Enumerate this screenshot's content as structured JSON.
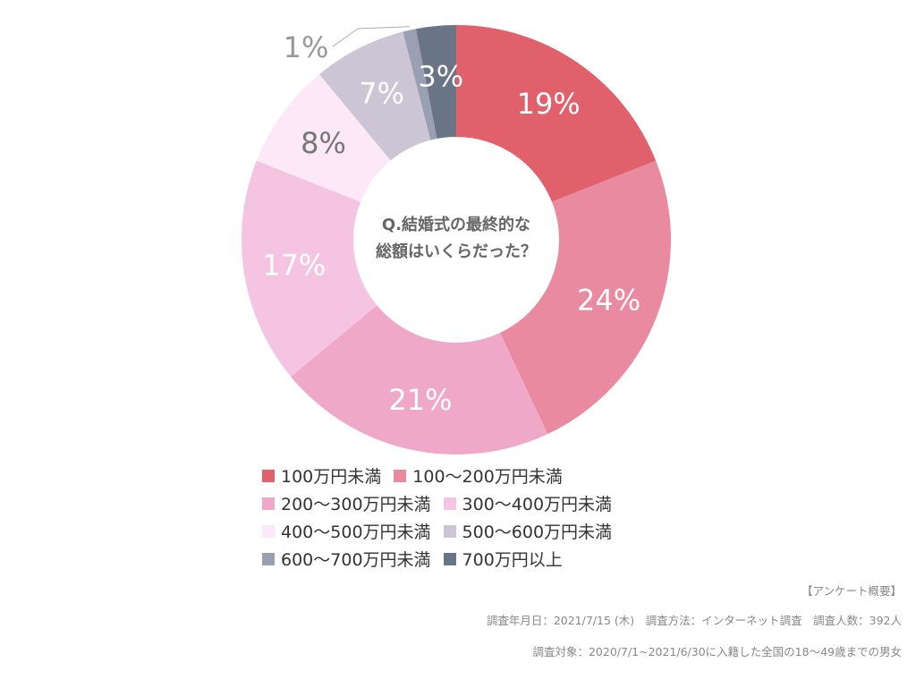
{
  "chart_data": {
    "type": "pie",
    "title": "Q.結婚式の最終的な総額はいくらだった？",
    "title_lines": [
      "Q.結婚式の最終的な",
      "総額はいくらだった？"
    ],
    "categories": [
      "100万円未満",
      "100〜200万円未満",
      "200〜300万円未満",
      "300〜400万円未満",
      "400〜500万円未満",
      "500〜600万円未満",
      "600〜700万円未満",
      "700万円以上"
    ],
    "values": [
      19,
      24,
      21,
      17,
      8,
      7,
      1,
      3
    ],
    "labels": [
      "19%",
      "24%",
      "21%",
      "17%",
      "8%",
      "7%",
      "1%",
      "3%"
    ],
    "colors": [
      "#e0606b",
      "#ea8aa0",
      "#f0a8c8",
      "#f5c4e3",
      "#fce8f6",
      "#cbc5d6",
      "#9a9fb1",
      "#697487"
    ],
    "legend": "bottom",
    "donut": true
  },
  "survey": {
    "title": "【アンケート概要】",
    "line1": "調査年月日：2021/7/15 (木)　調査方法：インターネット調査　調査人数：392人",
    "line2": "調査対象：2020/7/1~2021/6/30に入籍した全国の18〜49歳までの男女"
  }
}
